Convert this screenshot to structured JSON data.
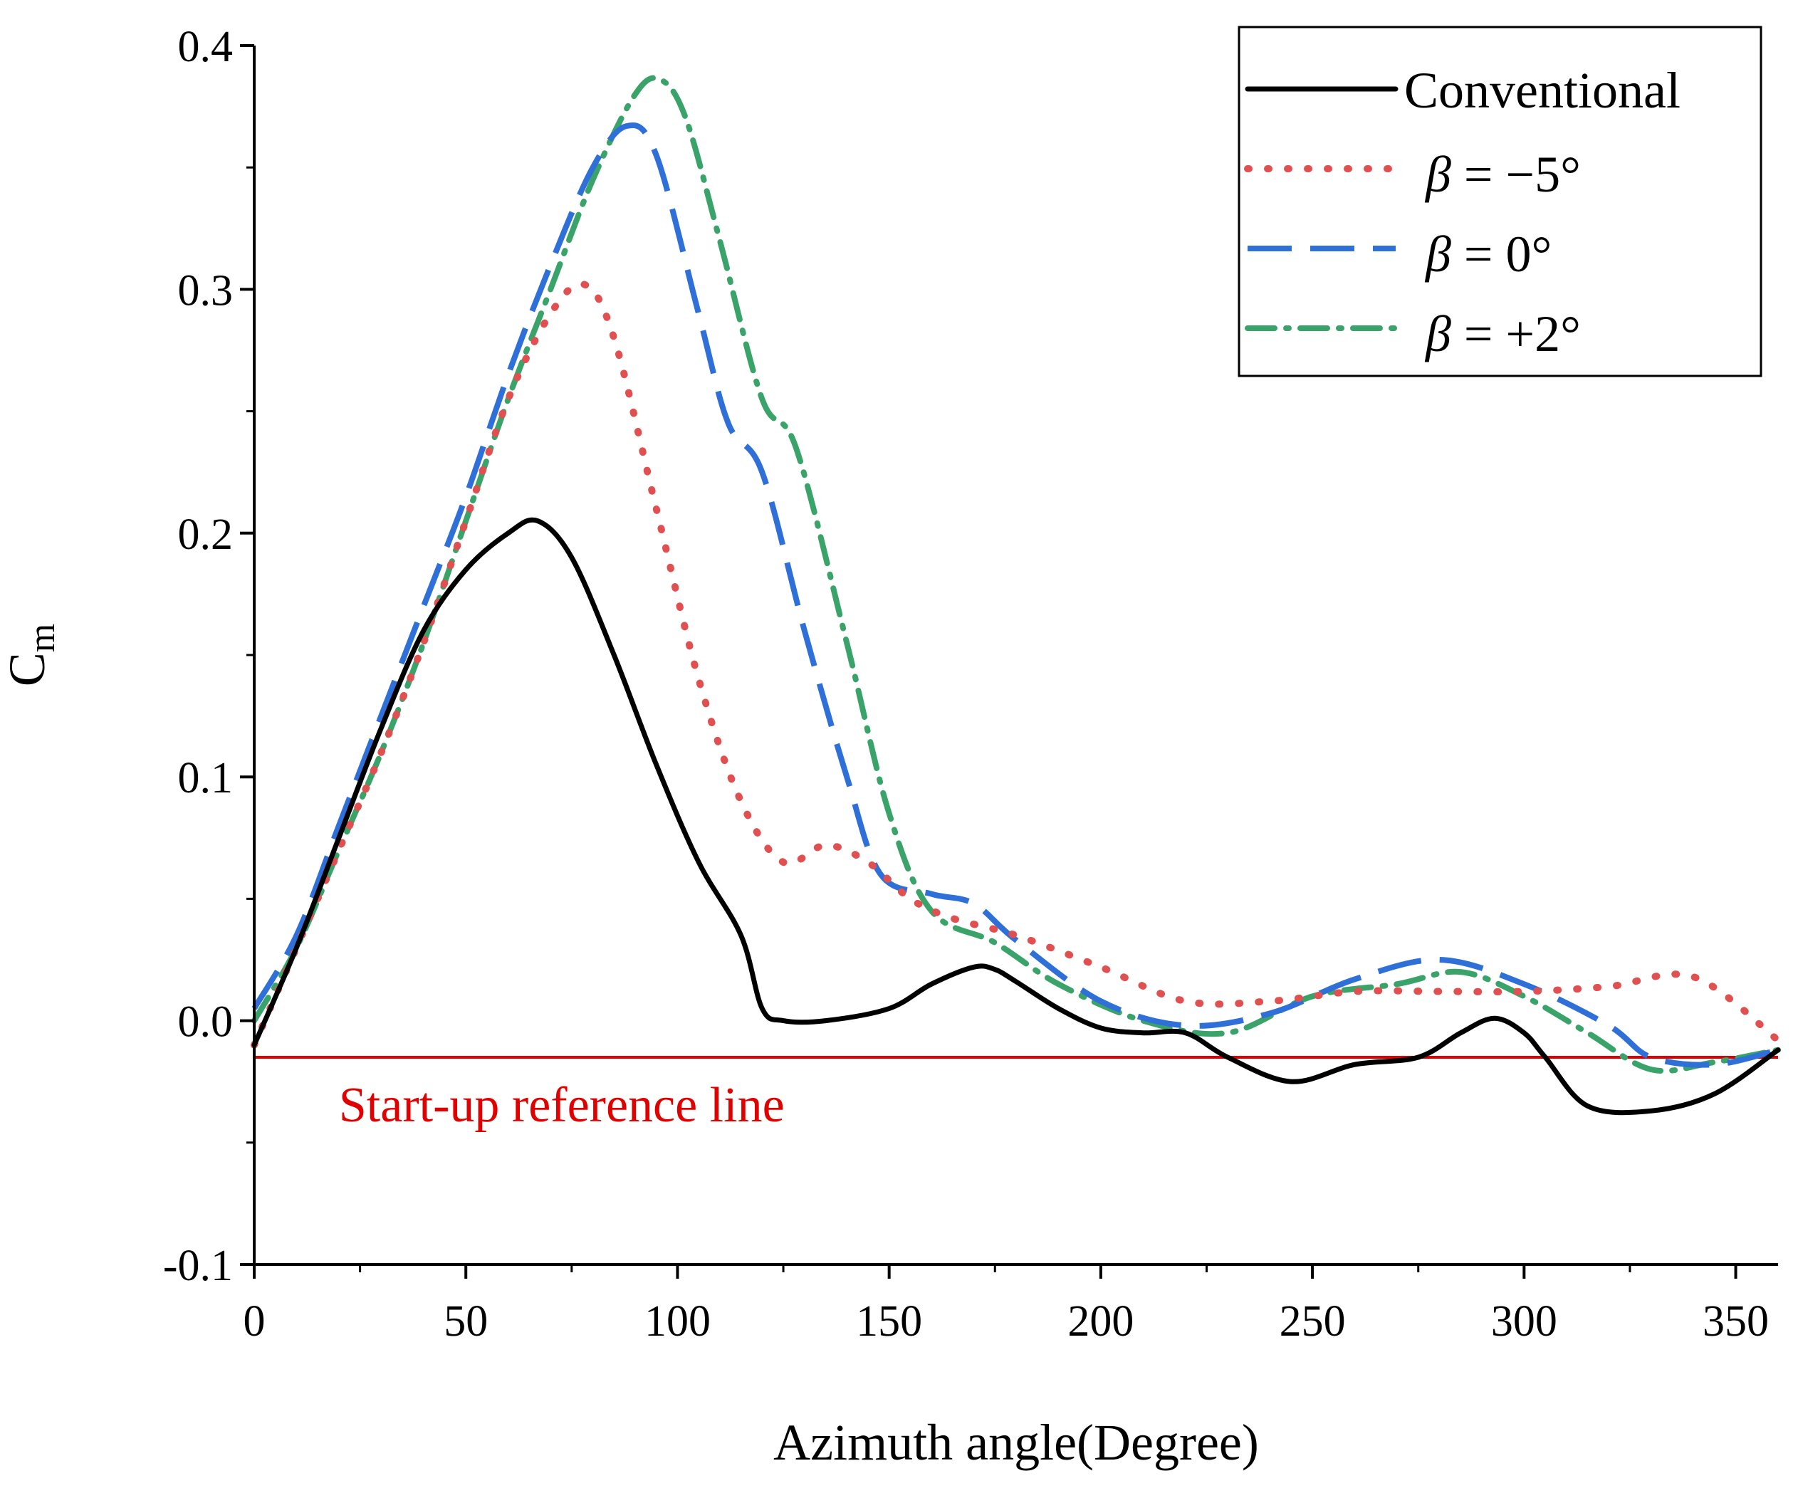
{
  "chart_data": {
    "type": "line",
    "xlabel": "Azimuth angle(Degree)",
    "ylabel": "C",
    "ylabel_sub": "m",
    "xlim": [
      0,
      360
    ],
    "ylim": [
      -0.1,
      0.4
    ],
    "xticks": [
      0,
      50,
      100,
      150,
      200,
      250,
      300,
      350
    ],
    "xtick_labels": [
      "0",
      "50",
      "100",
      "150",
      "200",
      "250",
      "300",
      "350"
    ],
    "yticks": [
      -0.1,
      0.0,
      0.1,
      0.2,
      0.3,
      0.4
    ],
    "ytick_labels": [
      "-0.1",
      "0.0",
      "0.1",
      "0.2",
      "0.3",
      "0.4"
    ],
    "legend_position": "top-right",
    "reference_line": {
      "label": "Start-up reference line",
      "y": -0.015,
      "color": "#e00000"
    },
    "series": [
      {
        "name": "Conventional",
        "legend_label": "Conventional",
        "color": "#000000",
        "style": "solid",
        "x": [
          0,
          10,
          20,
          30,
          40,
          50,
          60,
          67,
          75,
          85,
          95,
          105,
          115,
          120,
          125,
          135,
          150,
          160,
          170,
          175,
          180,
          190,
          200,
          210,
          220,
          230,
          245,
          260,
          275,
          285,
          293,
          300,
          305,
          315,
          330,
          345,
          360
        ],
        "y": [
          -0.01,
          0.03,
          0.075,
          0.12,
          0.16,
          0.185,
          0.2,
          0.205,
          0.19,
          0.15,
          0.105,
          0.065,
          0.035,
          0.005,
          0.0,
          0.0,
          0.005,
          0.015,
          0.022,
          0.021,
          0.016,
          0.005,
          -0.003,
          -0.005,
          -0.005,
          -0.015,
          -0.025,
          -0.018,
          -0.015,
          -0.005,
          0.001,
          -0.005,
          -0.015,
          -0.035,
          -0.037,
          -0.03,
          -0.012
        ]
      },
      {
        "name": "beta_minus_5",
        "legend_beta": "β",
        "legend_rest": " = −5°",
        "color": "#e05050",
        "style": "dotted",
        "x": [
          0,
          10,
          20,
          30,
          40,
          50,
          60,
          70,
          78,
          85,
          95,
          105,
          115,
          125,
          135,
          145,
          155,
          165,
          180,
          200,
          220,
          240,
          260,
          280,
          300,
          320,
          340,
          360
        ],
        "y": [
          -0.01,
          0.03,
          0.07,
          0.11,
          0.155,
          0.205,
          0.255,
          0.29,
          0.302,
          0.28,
          0.21,
          0.14,
          0.09,
          0.065,
          0.072,
          0.065,
          0.05,
          0.042,
          0.035,
          0.022,
          0.008,
          0.008,
          0.012,
          0.012,
          0.012,
          0.014,
          0.018,
          -0.008
        ]
      },
      {
        "name": "beta_0",
        "legend_beta": "β",
        "legend_rest": " = 0°",
        "color": "#2e6fd8",
        "style": "dashed",
        "x": [
          0,
          10,
          20,
          30,
          40,
          50,
          60,
          70,
          80,
          88,
          95,
          105,
          112,
          120,
          130,
          140,
          148,
          160,
          170,
          180,
          200,
          220,
          240,
          260,
          280,
          300,
          320,
          330,
          345,
          360
        ],
        "y": [
          0.005,
          0.035,
          0.08,
          0.125,
          0.17,
          0.215,
          0.265,
          0.31,
          0.35,
          0.367,
          0.355,
          0.29,
          0.245,
          0.225,
          0.16,
          0.1,
          0.06,
          0.052,
          0.048,
          0.033,
          0.008,
          -0.002,
          0.003,
          0.017,
          0.025,
          0.015,
          -0.002,
          -0.015,
          -0.018,
          -0.012
        ]
      },
      {
        "name": "beta_plus_2",
        "legend_beta": "β",
        "legend_rest": " = +2°",
        "color": "#3aa36a",
        "style": "dash-dot",
        "x": [
          0,
          10,
          20,
          30,
          40,
          50,
          60,
          70,
          80,
          90,
          96,
          102,
          110,
          120,
          128,
          140,
          150,
          160,
          175,
          190,
          210,
          230,
          250,
          270,
          285,
          300,
          315,
          330,
          345,
          360
        ],
        "y": [
          0.0,
          0.03,
          0.07,
          0.11,
          0.155,
          0.205,
          0.255,
          0.3,
          0.345,
          0.38,
          0.386,
          0.37,
          0.32,
          0.255,
          0.235,
          0.155,
          0.085,
          0.045,
          0.032,
          0.015,
          0.0,
          -0.005,
          0.01,
          0.015,
          0.02,
          0.01,
          -0.005,
          -0.02,
          -0.017,
          -0.012
        ]
      }
    ]
  }
}
